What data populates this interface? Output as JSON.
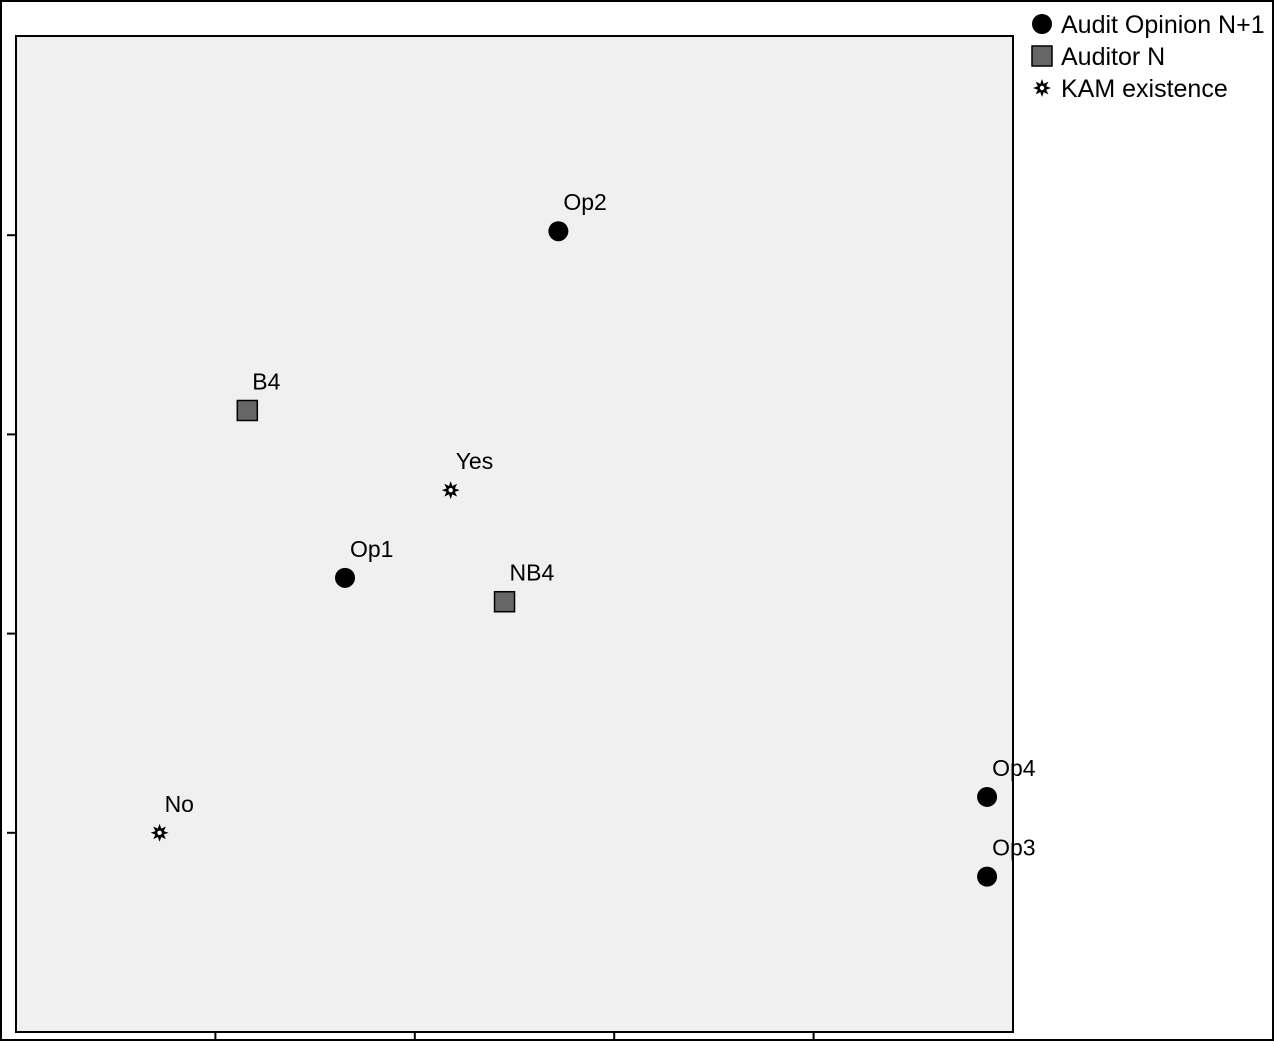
{
  "chart_data": {
    "type": "scatter",
    "title": "",
    "xlabel": "",
    "ylabel": "",
    "xlim": [
      0,
      5
    ],
    "ylim": [
      0,
      5
    ],
    "grid": false,
    "legend_placement": "top-right outside plot",
    "series": [
      {
        "name": "Audit Opinion N+1",
        "marker": "circle",
        "color": "#000000",
        "points": [
          {
            "label": "Op2",
            "x": 2.72,
            "y": 4.02
          },
          {
            "label": "Op1",
            "x": 1.65,
            "y": 2.28
          },
          {
            "label": "Op4",
            "x": 4.87,
            "y": 1.18
          },
          {
            "label": "Op3",
            "x": 4.87,
            "y": 0.78
          }
        ]
      },
      {
        "name": "Auditor N",
        "marker": "square",
        "color": "#666666",
        "points": [
          {
            "label": "B4",
            "x": 1.16,
            "y": 3.12
          },
          {
            "label": "NB4",
            "x": 2.45,
            "y": 2.16
          }
        ]
      },
      {
        "name": "KAM existence",
        "marker": "star",
        "color": "#000000",
        "points": [
          {
            "label": "Yes",
            "x": 2.18,
            "y": 2.72
          },
          {
            "label": "No",
            "x": 0.72,
            "y": 1.0
          }
        ]
      }
    ]
  }
}
